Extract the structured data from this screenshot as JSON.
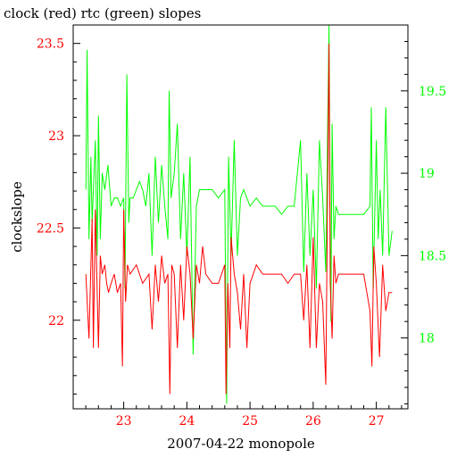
{
  "chart_data": {
    "type": "line",
    "title": "clock (red) rtc (green) slopes",
    "xlabel": "2007-04-22 monopole",
    "ylabel": "clockslope",
    "xlim": [
      22.2,
      27.5
    ],
    "ylim_left": [
      21.52,
      23.6
    ],
    "ylim_right": [
      17.57,
      19.9
    ],
    "x_ticks": [
      "23",
      "24",
      "25",
      "26",
      "27"
    ],
    "y_left_ticks": [
      "22",
      "22.5",
      "23",
      "23.5"
    ],
    "y_right_ticks": [
      "18",
      "18.5",
      "19",
      "19.5"
    ],
    "grid": false,
    "colors": {
      "clock": "#ff0000",
      "rtc": "#00ff00",
      "frame": "#000000",
      "left_axis": "#ff0000",
      "right_axis": "#00ff00"
    },
    "series": [
      {
        "name": "clock",
        "axis": "left",
        "x": [
          22.4,
          22.45,
          22.5,
          22.52,
          22.55,
          22.6,
          22.63,
          22.66,
          22.7,
          22.73,
          22.76,
          22.8,
          22.85,
          22.9,
          22.95,
          22.98,
          23.0,
          23.03,
          23.06,
          23.1,
          23.2,
          23.3,
          23.4,
          23.45,
          23.5,
          23.55,
          23.6,
          23.65,
          23.7,
          23.73,
          23.76,
          23.8,
          23.85,
          23.9,
          23.95,
          24.0,
          24.05,
          24.1,
          24.15,
          24.2,
          24.25,
          24.3,
          24.4,
          24.5,
          24.6,
          24.62,
          24.65,
          24.68,
          24.7,
          24.75,
          24.8,
          24.85,
          24.9,
          24.95,
          25.0,
          25.05,
          25.1,
          25.2,
          25.3,
          25.4,
          25.5,
          25.6,
          25.7,
          25.8,
          25.85,
          25.9,
          25.95,
          26.0,
          26.05,
          26.1,
          26.15,
          26.2,
          26.25,
          26.27,
          26.3,
          26.33,
          26.36,
          26.4,
          26.5,
          26.6,
          26.7,
          26.8,
          26.9,
          26.93,
          26.96,
          27.0,
          27.05,
          27.1,
          27.15,
          27.2,
          27.25
        ],
        "values": [
          22.25,
          21.9,
          22.55,
          21.85,
          22.6,
          21.85,
          22.35,
          22.25,
          22.3,
          22.2,
          22.15,
          22.2,
          22.25,
          22.15,
          22.2,
          21.75,
          22.6,
          22.1,
          22.3,
          22.25,
          22.3,
          22.2,
          22.25,
          21.95,
          22.3,
          22.1,
          22.35,
          22.2,
          22.25,
          21.6,
          22.3,
          22.25,
          21.85,
          22.3,
          22.0,
          22.4,
          22.25,
          21.9,
          22.3,
          22.2,
          22.4,
          22.25,
          22.2,
          22.2,
          22.3,
          21.6,
          22.2,
          21.85,
          22.45,
          22.25,
          22.15,
          21.95,
          22.25,
          21.85,
          22.2,
          22.25,
          22.3,
          22.25,
          22.25,
          22.25,
          22.25,
          22.2,
          22.25,
          22.25,
          22.0,
          22.3,
          21.85,
          22.45,
          21.85,
          22.2,
          22.1,
          21.65,
          23.5,
          22.2,
          21.9,
          22.35,
          22.2,
          22.25,
          22.25,
          22.25,
          22.25,
          22.25,
          22.05,
          21.75,
          22.4,
          22.2,
          21.8,
          22.3,
          22.05,
          22.15,
          22.15
        ]
      },
      {
        "name": "rtc",
        "axis": "right",
        "x": [
          22.4,
          22.42,
          22.45,
          22.48,
          22.5,
          22.55,
          22.58,
          22.6,
          22.63,
          22.66,
          22.7,
          22.75,
          22.8,
          22.85,
          22.9,
          22.95,
          23.0,
          23.02,
          23.05,
          23.08,
          23.1,
          23.15,
          23.2,
          23.25,
          23.3,
          23.35,
          23.4,
          23.45,
          23.5,
          23.55,
          23.6,
          23.65,
          23.7,
          23.72,
          23.75,
          23.8,
          23.85,
          23.9,
          23.95,
          24.0,
          24.05,
          24.1,
          24.15,
          24.2,
          24.3,
          24.4,
          24.5,
          24.6,
          24.63,
          24.66,
          24.7,
          24.75,
          24.8,
          24.85,
          24.9,
          24.95,
          25.0,
          25.1,
          25.2,
          25.3,
          25.4,
          25.5,
          25.6,
          25.7,
          25.8,
          25.85,
          25.9,
          25.95,
          26.0,
          26.05,
          26.1,
          26.15,
          26.2,
          26.25,
          26.28,
          26.3,
          26.33,
          26.36,
          26.4,
          26.5,
          26.6,
          26.7,
          26.8,
          26.9,
          26.92,
          26.95,
          27.0,
          27.03,
          27.06,
          27.1,
          27.15,
          27.2,
          27.25
        ],
        "values": [
          18.9,
          19.75,
          18.6,
          19.1,
          18.7,
          19.2,
          18.5,
          19.35,
          18.6,
          19.0,
          18.9,
          19.05,
          18.8,
          18.85,
          18.85,
          18.8,
          18.85,
          18.3,
          19.6,
          18.7,
          18.85,
          18.85,
          18.9,
          18.95,
          18.9,
          18.8,
          19.0,
          18.5,
          19.1,
          18.7,
          19.05,
          18.8,
          18.6,
          19.5,
          18.85,
          19.0,
          19.3,
          18.6,
          19.0,
          18.5,
          19.1,
          17.9,
          18.8,
          18.9,
          18.9,
          18.9,
          18.85,
          18.9,
          17.6,
          19.1,
          18.5,
          19.2,
          18.5,
          18.85,
          18.9,
          18.85,
          18.8,
          18.85,
          18.8,
          18.8,
          18.8,
          18.75,
          18.8,
          18.8,
          19.2,
          18.4,
          19.0,
          18.5,
          18.9,
          18.3,
          19.2,
          18.85,
          18.4,
          19.9,
          18.1,
          19.3,
          18.6,
          18.8,
          18.75,
          18.75,
          18.75,
          18.75,
          18.75,
          18.8,
          19.4,
          18.3,
          19.2,
          18.6,
          18.9,
          18.5,
          19.4,
          18.5,
          18.65
        ]
      }
    ]
  }
}
